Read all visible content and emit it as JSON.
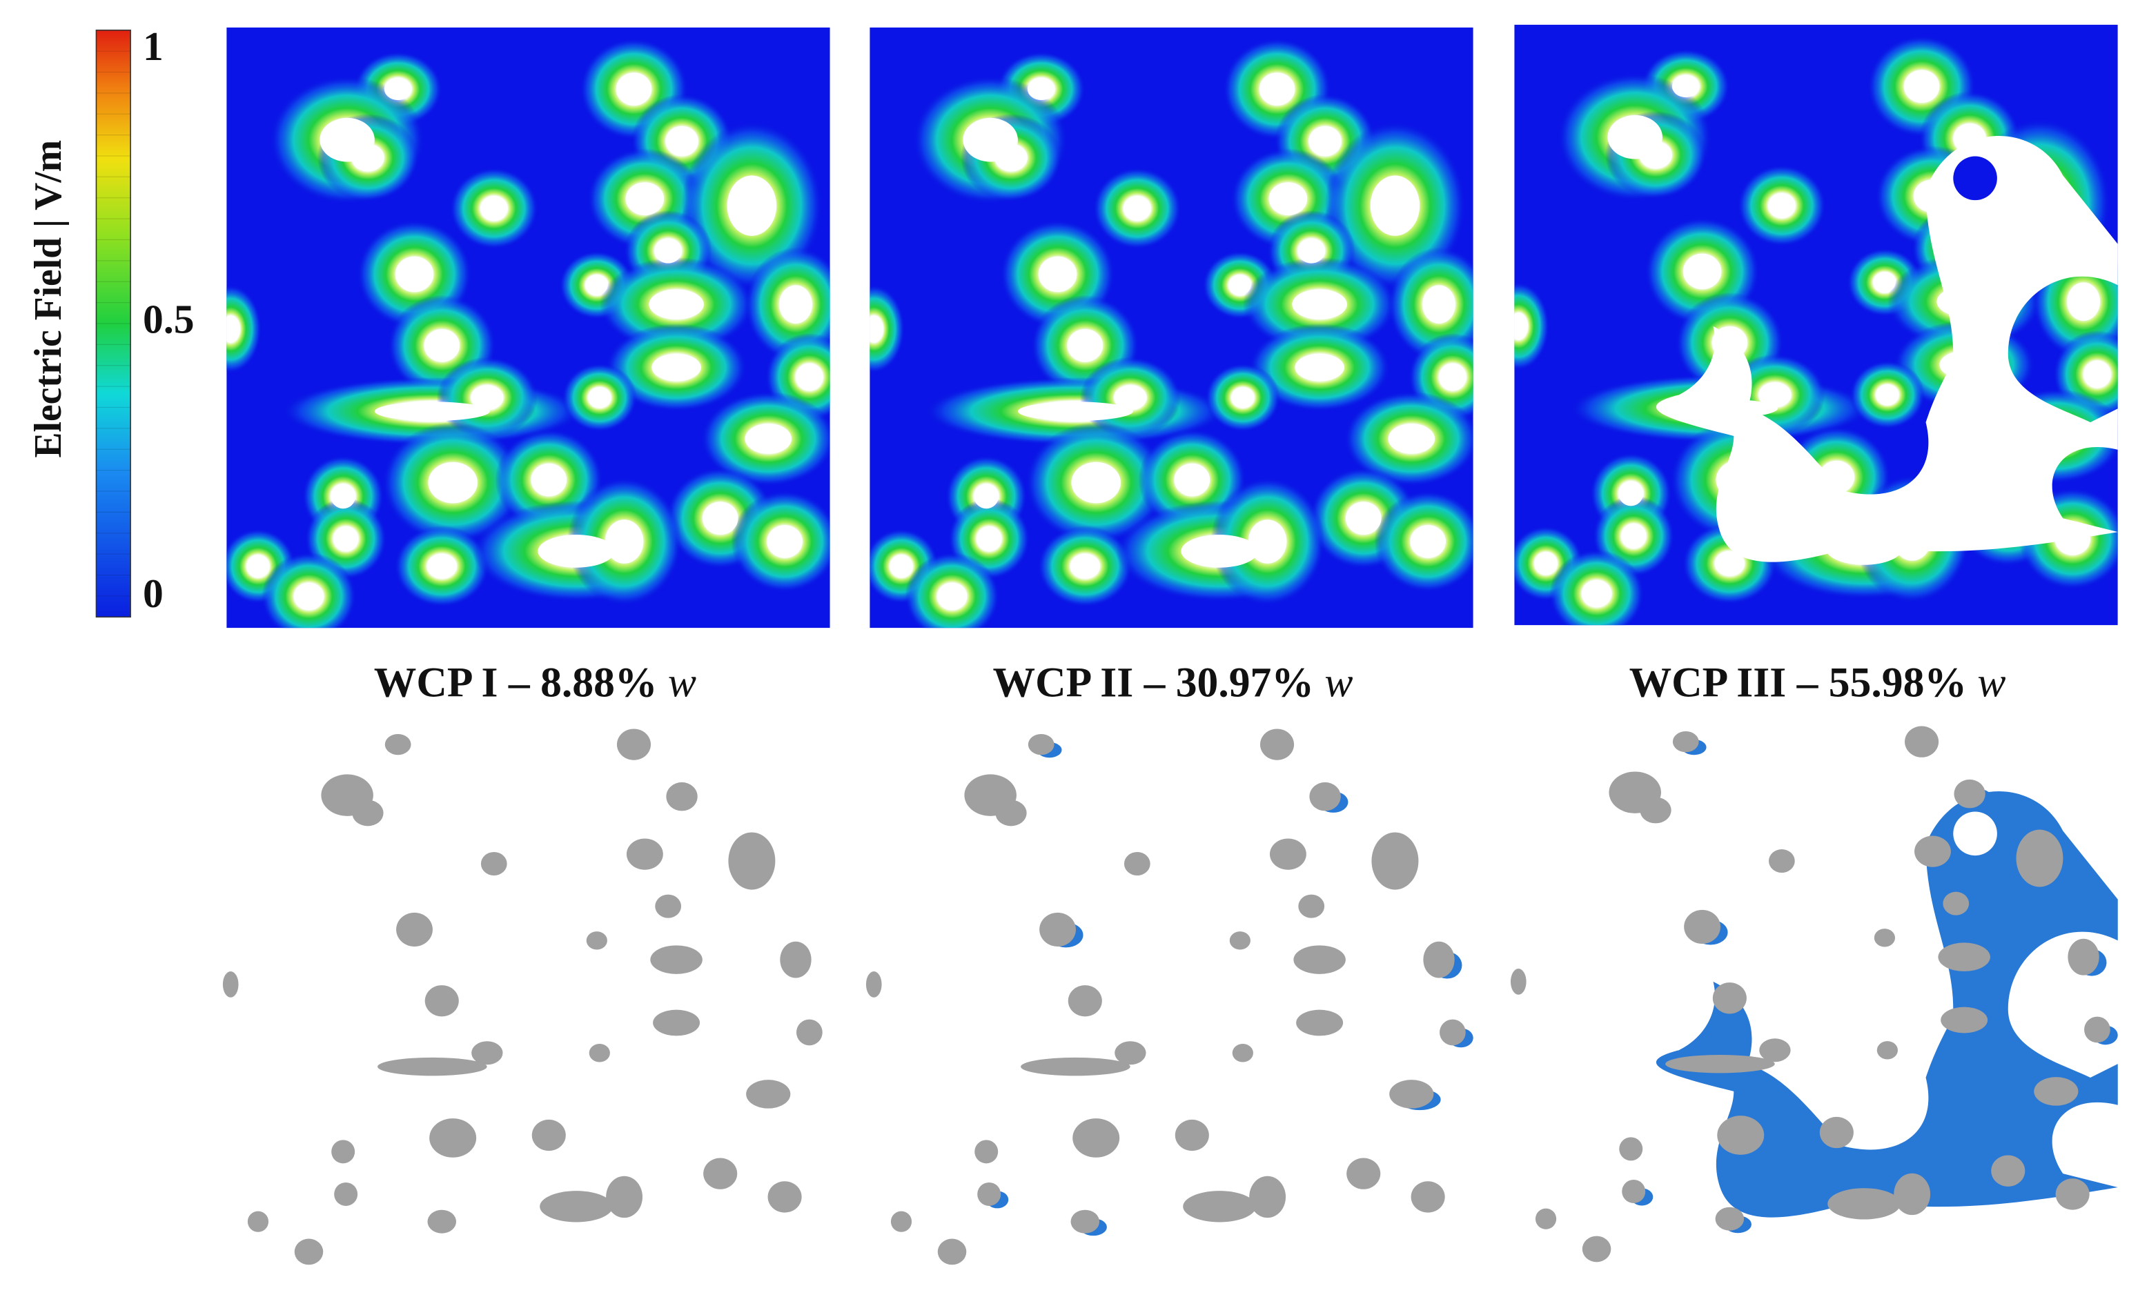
{
  "colorbar": {
    "label": "Electric Field | V/m",
    "ticks": [
      1,
      0.5,
      0
    ]
  },
  "panels": [
    {
      "caption": "WCP I – 8.88%",
      "caption_italic": "w"
    },
    {
      "caption": "WCP II – 30.97%",
      "caption_italic": "w"
    },
    {
      "caption": "WCP III – 55.98%",
      "caption_italic": "w"
    }
  ]
}
